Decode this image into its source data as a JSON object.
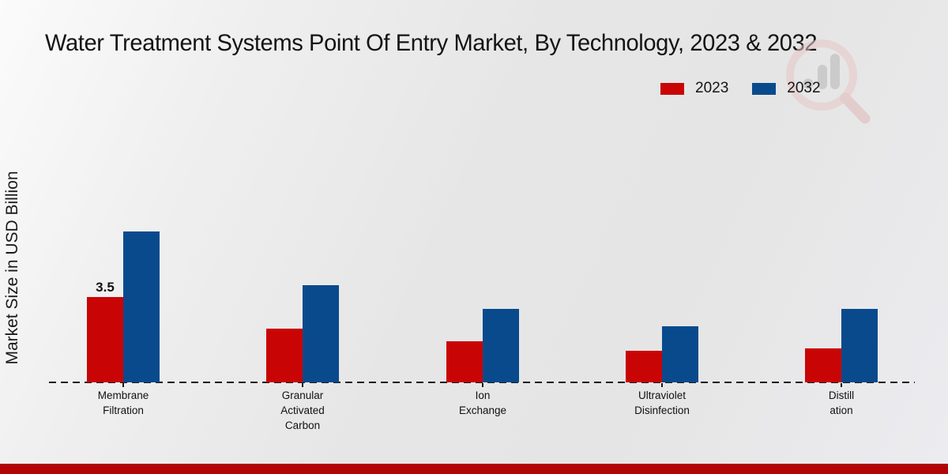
{
  "chart_data": {
    "type": "bar",
    "title": "Water Treatment Systems Point Of Entry Market, By Technology, 2023 & 2032",
    "xlabel": "",
    "ylabel": "Market Size in USD Billion",
    "ylim": [
      0,
      6.5
    ],
    "grid": false,
    "y_axis_ticks": "none",
    "baseline_style": "dashed",
    "legend_position": "top-right",
    "categories": [
      "Membrane Filtration",
      "Granular Activated Carbon",
      "Ion Exchange",
      "Ultraviolet Disinfection",
      "Distillation"
    ],
    "category_lines": [
      [
        "Membrane",
        "Filtration"
      ],
      [
        "Granular",
        "Activated",
        "Carbon"
      ],
      [
        "Ion",
        "Exchange"
      ],
      [
        "Ultraviolet",
        "Disinfection"
      ],
      [
        "Distill",
        "ation"
      ]
    ],
    "series": [
      {
        "name": "2023",
        "color": "#c90404",
        "values": [
          3.5,
          2.2,
          1.7,
          1.3,
          1.4
        ],
        "labels": [
          "3.5",
          "",
          "",
          "",
          ""
        ]
      },
      {
        "name": "2032",
        "color": "#094a8d",
        "values": [
          6.2,
          4.0,
          3.0,
          2.3,
          3.0
        ],
        "labels": [
          "",
          "",
          "",
          "",
          ""
        ]
      }
    ]
  },
  "colors": {
    "accent_red": "#c90404",
    "accent_blue": "#094a8d",
    "bottom_bar": "#b20505",
    "background": "#e8e8e8",
    "text": "#141414"
  },
  "icons": {
    "watermark": "magnifier-bar-chart-watermark"
  }
}
